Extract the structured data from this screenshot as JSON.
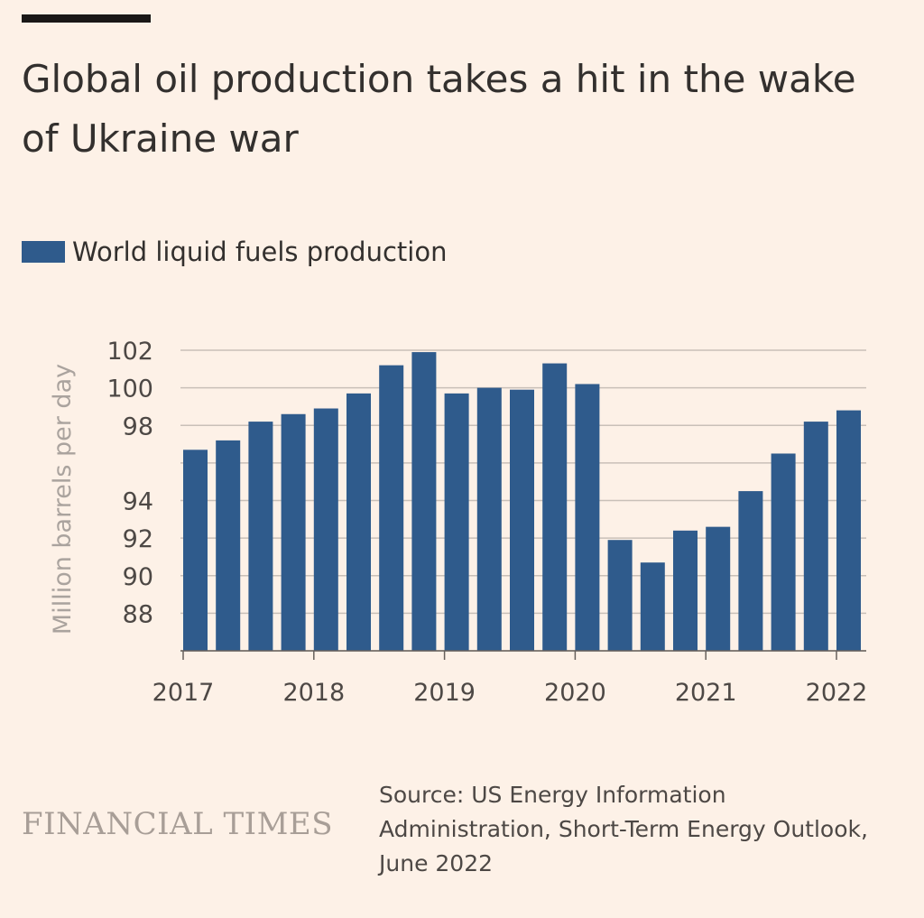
{
  "header": {
    "title": "Global oil production takes a hit in the wake of Ukraine war"
  },
  "footer": {
    "brand": "FINANCIAL TIMES",
    "source": "Source: US Energy Information Administration, Short-Term Energy Outlook, June 2022"
  },
  "colors": {
    "background": "#fdf1e7",
    "bar": "#2f5b8c",
    "grid": "#c9c0b8",
    "axis_text": "#4d4845",
    "ylabel": "#aaa39e"
  },
  "chart_data": {
    "type": "bar",
    "legend": {
      "position": "top-left"
    },
    "series": [
      {
        "name": "World liquid fuels production",
        "color": "#2f5b8c",
        "values": [
          96.7,
          97.2,
          98.2,
          98.6,
          98.9,
          99.7,
          101.2,
          101.9,
          99.7,
          100.0,
          99.9,
          101.3,
          100.2,
          91.9,
          90.7,
          92.4,
          92.6,
          94.5,
          96.5,
          98.2,
          98.8
        ]
      }
    ],
    "x_start": "2017",
    "x_step": "quarter",
    "xticks": [
      "2017",
      "2018",
      "2019",
      "2020",
      "2021",
      "2022"
    ],
    "ylabel": "Million barrels per day",
    "yticks": [
      102,
      100,
      98,
      94,
      92,
      90,
      88
    ],
    "gridlines": [
      86,
      88,
      90,
      92,
      94,
      96,
      98,
      100,
      102
    ],
    "ylim": [
      86,
      102
    ],
    "grid": true
  }
}
